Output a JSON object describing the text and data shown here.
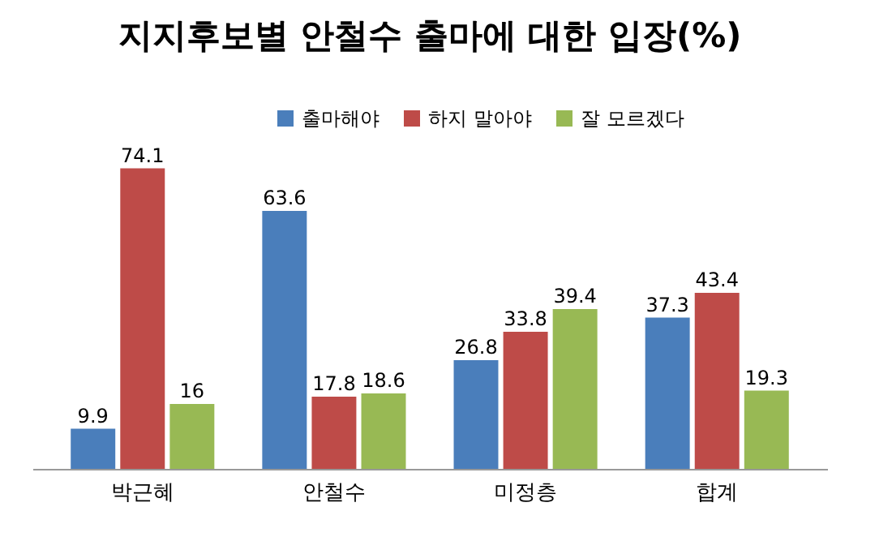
{
  "chart_data": {
    "type": "bar",
    "title": "지지후보별 안철수 출마에 대한 입장(%)",
    "categories": [
      "박근혜",
      "안철수",
      "미정층",
      "합계"
    ],
    "series": [
      {
        "name": "출마해야",
        "color": "#4a7ebb",
        "values": [
          9.9,
          63.6,
          26.8,
          37.3
        ]
      },
      {
        "name": "하지 말아야",
        "color": "#be4b48",
        "values": [
          74.1,
          17.8,
          33.8,
          43.4
        ]
      },
      {
        "name": "잘 모르겠다",
        "color": "#98b954",
        "values": [
          16,
          18.6,
          39.4,
          19.3
        ]
      }
    ],
    "data_labels": true,
    "legend": "top right",
    "grid": false
  }
}
